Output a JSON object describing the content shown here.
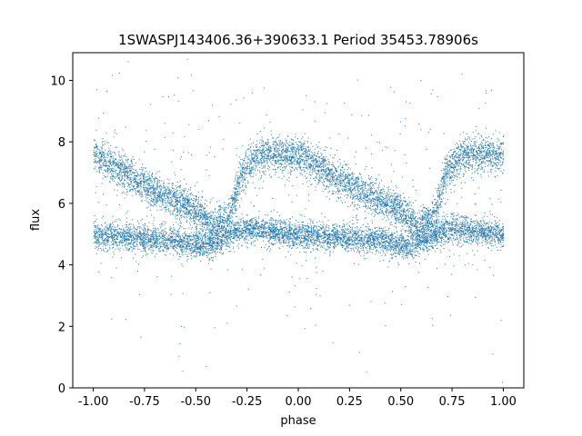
{
  "chart_data": {
    "type": "scatter",
    "title": "1SWASPJ143406.36+390633.1 Period 35453.78906s",
    "xlabel": "phase",
    "ylabel": "flux",
    "xlim": [
      -1.1,
      1.1
    ],
    "ylim": [
      0,
      10.9
    ],
    "xticks": [
      "-1.00",
      "-0.75",
      "-0.50",
      "-0.25",
      "0.00",
      "0.25",
      "0.50",
      "0.75",
      "1.00"
    ],
    "yticks": [
      "0",
      "2",
      "4",
      "6",
      "8",
      "10"
    ],
    "grid": false,
    "marker_color": "#1f77b4",
    "point_count_description": "dense phase-folded light curve",
    "components": [
      {
        "name": "upper branch (eclipse cycle)",
        "phase_period": 1.0,
        "profile": [
          [
            0.0,
            7.6
          ],
          [
            0.1,
            7.2
          ],
          [
            0.3,
            6.4
          ],
          [
            0.5,
            5.8
          ],
          [
            0.58,
            5.2
          ],
          [
            0.66,
            5.6
          ],
          [
            0.72,
            7.0
          ],
          [
            0.8,
            7.6
          ],
          [
            1.0,
            7.6
          ]
        ]
      },
      {
        "name": "lower branch",
        "phase_period": 1.0,
        "profile": [
          [
            0.0,
            5.0
          ],
          [
            0.2,
            4.9
          ],
          [
            0.4,
            4.8
          ],
          [
            0.55,
            4.6
          ],
          [
            0.66,
            5.0
          ],
          [
            0.75,
            5.2
          ],
          [
            1.0,
            5.0
          ]
        ]
      }
    ]
  }
}
